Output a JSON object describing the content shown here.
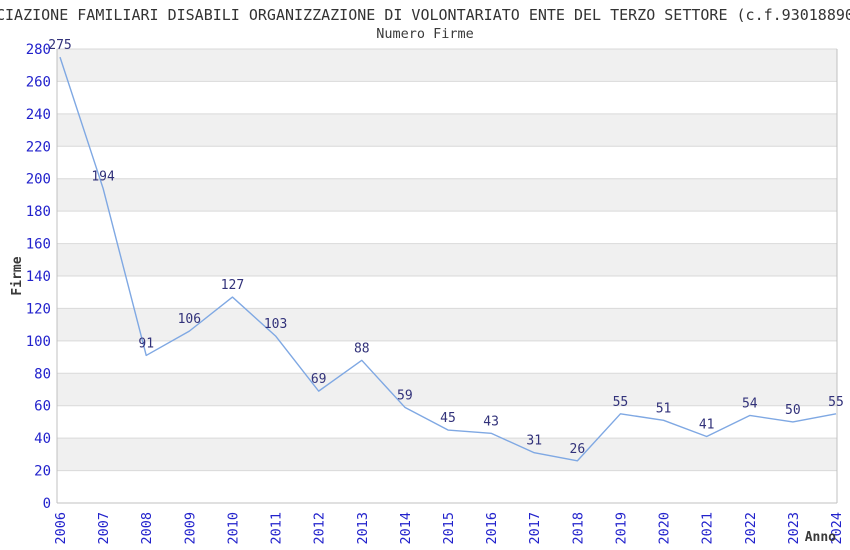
{
  "header": {
    "title_visible": "CIAZIONE FAMILIARI DISABILI ORGANIZZAZIONE DI VOLONTARIATO ENTE DEL TERZO SETTORE (c.f.93018890",
    "subtitle": "Numero Firme"
  },
  "chart_data": {
    "type": "line",
    "title": "Numero Firme",
    "xlabel": "Anno",
    "ylabel": "Firme",
    "categories": [
      "2006",
      "2007",
      "2008",
      "2009",
      "2010",
      "2011",
      "2012",
      "2013",
      "2014",
      "2015",
      "2016",
      "2017",
      "2018",
      "2019",
      "2020",
      "2021",
      "2022",
      "2023",
      "2024"
    ],
    "values": [
      275,
      194,
      91,
      106,
      127,
      103,
      69,
      88,
      59,
      45,
      43,
      31,
      26,
      55,
      51,
      41,
      54,
      50,
      55
    ],
    "ylim": [
      0,
      280
    ],
    "ytick_step": 20,
    "grid": true,
    "legend": "none",
    "colors": {
      "line": "#7fa8e3",
      "tick_label": "#2222cc",
      "data_label": "#32327a",
      "band": "#f0f0f0",
      "gridline": "#d9d9d9",
      "axis": "#c0c0c0",
      "axis_title": "#3a3a3a",
      "title_text": "#333333"
    }
  }
}
